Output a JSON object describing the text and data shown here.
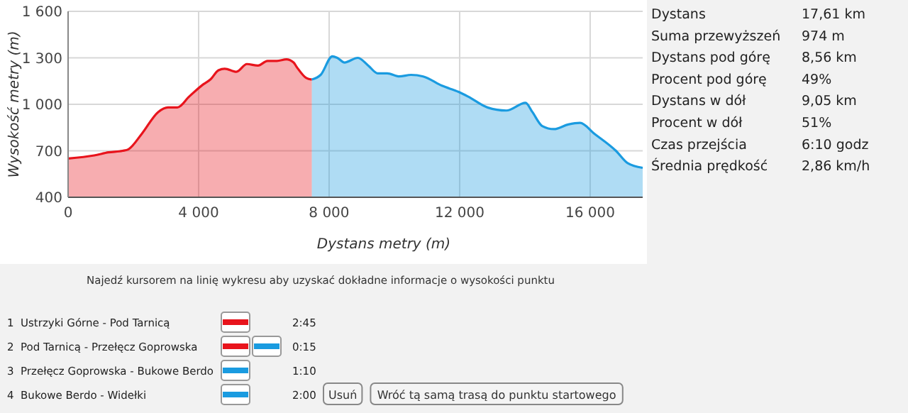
{
  "chart_data": [
    {
      "type": "area",
      "xlabel": "Dystans metry (m)",
      "ylabel": "Wysokość metry (m)",
      "xlim": [
        0,
        17610
      ],
      "xticks": [
        0,
        {
          "value": 4000,
          "label": "4 000"
        },
        {
          "value": 8000,
          "label": "8 000"
        },
        {
          "value": 12000,
          "label": "12 000"
        },
        {
          "value": 16000,
          "label": "16 000"
        }
      ],
      "ylim": [
        400,
        1600
      ],
      "yticks": [
        400,
        700,
        {
          "value": 1000,
          "label": "1 000"
        },
        {
          "value": 1300,
          "label": "1 300"
        },
        {
          "value": 1600,
          "label": "1 600"
        }
      ],
      "grid": true,
      "series": [
        {
          "color": "#e8141c",
          "x": [
            0,
            800,
            1240,
            1670,
            1850,
            2260,
            2760,
            3060,
            3350,
            3710,
            4150,
            4360,
            4610,
            4800,
            5160,
            5480,
            5820,
            6110,
            6400,
            6690,
            6910,
            7010,
            7300,
            7470
          ],
          "values": [
            650,
            670,
            690,
            700,
            710,
            810,
            950,
            980,
            980,
            1050,
            1130,
            1160,
            1220,
            1230,
            1210,
            1260,
            1250,
            1280,
            1280,
            1290,
            1270,
            1240,
            1170,
            1160
          ]
        },
        {
          "color": "#1a9be0",
          "x": [
            7470,
            7740,
            8100,
            8250,
            8470,
            8880,
            9200,
            9490,
            9780,
            10150,
            10510,
            10880,
            11460,
            11970,
            12260,
            12850,
            13430,
            14020,
            14230,
            14530,
            14890,
            15330,
            15690,
            16130,
            16790,
            17150,
            17610
          ],
          "values": [
            1160,
            1190,
            1310,
            1300,
            1270,
            1300,
            1250,
            1200,
            1200,
            1180,
            1190,
            1180,
            1120,
            1080,
            1050,
            980,
            960,
            1010,
            950,
            860,
            840,
            870,
            880,
            810,
            700,
            620,
            590
          ]
        }
      ],
      "annotations": [
        "Najedź kursorem na linię wykresu aby uzyskać dokładne informacje o wysokości punktu"
      ]
    },
    {
      "type": "other",
      "annotations": [
        "Dystans",
        "17,61 km",
        "Suma przewyższeń",
        "974 m",
        "Dystans pod górę",
        "8,56 km",
        "Procent pod górę",
        "49%",
        "Dystans w dół",
        "9,05 km",
        "Procent w dół",
        "51%",
        "Czas przejścia",
        "6:10 godz",
        "Średnia prędkość",
        "2,86 km/h"
      ]
    },
    {
      "type": "other",
      "annotations": [
        "1  Ustrzyki Górne - Pod Tarnicą",
        "2:45",
        "2  Pod Tarnicą - Przełęcz Goprowska",
        "0:15",
        "3  Przełęcz Goprowska - Bukowe Berdo",
        "1:10",
        "4  Bukowe Berdo - Widełki",
        "2:00",
        "Usuń",
        "Wróć tą samą trasą do punktu startowego"
      ]
    }
  ]
}
